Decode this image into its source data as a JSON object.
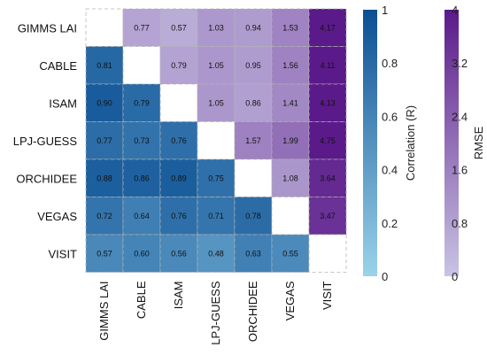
{
  "chart_data": {
    "type": "heatmap",
    "labels": [
      "GIMMS LAI",
      "CABLE",
      "ISAM",
      "LPJ-GUESS",
      "ORCHIDEE",
      "VEGAS",
      "VISIT"
    ],
    "lower_triangle": {
      "metric": "Correlation (R)",
      "values": [
        [
          null,
          null,
          null,
          null,
          null,
          null,
          null
        ],
        [
          0.81,
          null,
          null,
          null,
          null,
          null,
          null
        ],
        [
          0.9,
          0.79,
          null,
          null,
          null,
          null,
          null
        ],
        [
          0.77,
          0.73,
          0.76,
          null,
          null,
          null,
          null
        ],
        [
          0.88,
          0.86,
          0.89,
          0.75,
          null,
          null,
          null
        ],
        [
          0.72,
          0.64,
          0.76,
          0.71,
          0.78,
          null,
          null
        ],
        [
          0.57,
          0.6,
          0.56,
          0.48,
          0.63,
          0.55,
          null
        ]
      ],
      "display": [
        [
          "",
          "",
          "",
          "",
          "",
          "",
          ""
        ],
        [
          "0.81",
          "",
          "",
          "",
          "",
          "",
          ""
        ],
        [
          "0.90",
          "0.79",
          "",
          "",
          "",
          "",
          ""
        ],
        [
          "0.77",
          "0.73",
          "0.76",
          "",
          "",
          "",
          ""
        ],
        [
          "0.88",
          "0.86",
          "0.89",
          "0.75",
          "",
          "",
          ""
        ],
        [
          "0.72",
          "0.64",
          "0.76",
          "0.71",
          "0.78",
          "",
          ""
        ],
        [
          "0.57",
          "0.60",
          "0.56",
          "0.48",
          "0.63",
          "0.55",
          ""
        ]
      ]
    },
    "upper_triangle": {
      "metric": "RMSE",
      "values": [
        [
          null,
          0.77,
          0.57,
          1.03,
          0.94,
          1.53,
          4.17
        ],
        [
          null,
          null,
          0.79,
          1.05,
          0.95,
          1.56,
          4.11
        ],
        [
          null,
          null,
          null,
          1.05,
          0.86,
          1.41,
          4.13
        ],
        [
          null,
          null,
          null,
          null,
          1.57,
          1.99,
          4.75
        ],
        [
          null,
          null,
          null,
          null,
          null,
          1.08,
          3.64
        ],
        [
          null,
          null,
          null,
          null,
          null,
          null,
          3.47
        ],
        [
          null,
          null,
          null,
          null,
          null,
          null,
          null
        ]
      ],
      "display": [
        [
          "",
          "0.77",
          "0.57",
          "1.03",
          "0.94",
          "1.53",
          "4.17"
        ],
        [
          "",
          "",
          "0.79",
          "1.05",
          "0.95",
          "1.56",
          "4.11"
        ],
        [
          "",
          "",
          "",
          "1.05",
          "0.86",
          "1.41",
          "4.13"
        ],
        [
          "",
          "",
          "",
          "",
          "1.57",
          "1.99",
          "4.75"
        ],
        [
          "",
          "",
          "",
          "",
          "",
          "1.08",
          "3.64"
        ],
        [
          "",
          "",
          "",
          "",
          "",
          "",
          "3.47"
        ],
        [
          "",
          "",
          "",
          "",
          "",
          "",
          ""
        ]
      ]
    },
    "colorbars": [
      {
        "label": "Correlation (R)",
        "range": [
          0,
          1
        ],
        "ticks": [
          "1",
          "0.8",
          "0.6",
          "0.4",
          "0.2",
          "0"
        ],
        "color_low": "#9bd3ea",
        "color_high": "#0b4f94"
      },
      {
        "label": "RMSE",
        "range": [
          0,
          4
        ],
        "ticks": [
          "4",
          "3.2",
          "2.4",
          "1.6",
          "0.8",
          "0"
        ],
        "color_low": "#c9c4e4",
        "color_high": "#5b1a8a"
      }
    ]
  }
}
